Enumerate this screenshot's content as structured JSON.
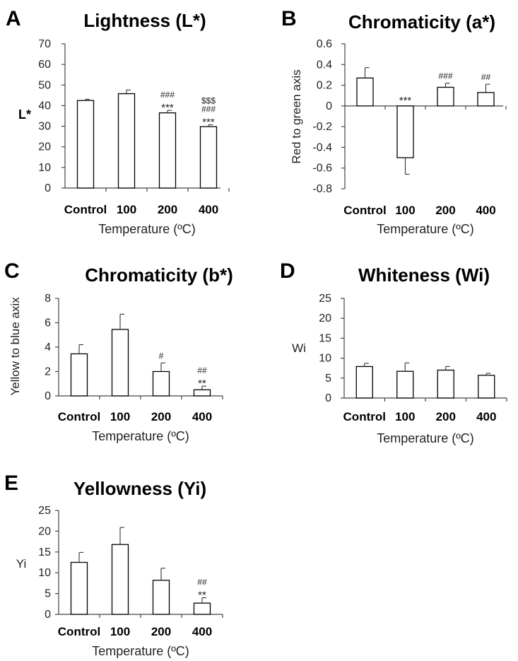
{
  "figure": {
    "x_axis_label": "Temperature (ºC)"
  },
  "chart_data": [
    {
      "panel": "A",
      "type": "bar",
      "title": "Lightness (L*)",
      "ylabel": "L*",
      "xlabel": "Temperature (ºC)",
      "categories": [
        "Control",
        "100",
        "200",
        "400"
      ],
      "values": [
        42.5,
        45.8,
        36.5,
        29.8
      ],
      "errors": [
        0.6,
        1.8,
        1.2,
        0.9
      ],
      "ylim": [
        0,
        70
      ],
      "yticks": [
        0,
        10,
        20,
        30,
        40,
        50,
        60,
        70
      ],
      "annotations": [
        [],
        [],
        [
          "***",
          "###"
        ],
        [
          "***",
          "###",
          "$$$"
        ]
      ]
    },
    {
      "panel": "B",
      "type": "bar",
      "title": "Chromaticity (a*)",
      "ylabel": "Red to green axis",
      "xlabel": "Temperature (ºC)",
      "categories": [
        "Control",
        "100",
        "200",
        "400"
      ],
      "values": [
        0.27,
        -0.5,
        0.18,
        0.13
      ],
      "errors": [
        0.1,
        0.16,
        0.04,
        0.08
      ],
      "ylim": [
        -0.8,
        0.6
      ],
      "yticks": [
        -0.8,
        -0.6,
        -0.4,
        -0.2,
        0,
        0.2,
        0.4,
        0.6
      ],
      "annotations": [
        [],
        [
          "***"
        ],
        [
          "###"
        ],
        [
          "##"
        ]
      ]
    },
    {
      "panel": "C",
      "type": "bar",
      "title": "Chromaticity (b*)",
      "ylabel": "Yellow to blue axix",
      "xlabel": "Temperature (ºC)",
      "categories": [
        "Control",
        "100",
        "200",
        "400"
      ],
      "values": [
        3.45,
        5.45,
        2.0,
        0.5
      ],
      "errors": [
        0.75,
        1.25,
        0.7,
        0.3
      ],
      "ylim": [
        0,
        8
      ],
      "yticks": [
        0,
        2,
        4,
        6,
        8
      ],
      "annotations": [
        [],
        [],
        [
          "#"
        ],
        [
          "**",
          "##"
        ]
      ]
    },
    {
      "panel": "D",
      "type": "bar",
      "title": "Whiteness (Wi)",
      "ylabel": "Wi",
      "xlabel": "Temperature (ºC)",
      "categories": [
        "Control",
        "100",
        "200",
        "400"
      ],
      "values": [
        7.9,
        6.7,
        7.0,
        5.7
      ],
      "errors": [
        0.8,
        2.1,
        0.9,
        0.5
      ],
      "ylim": [
        0,
        25
      ],
      "yticks": [
        0,
        5,
        10,
        15,
        20,
        25
      ],
      "annotations": [
        [],
        [],
        [],
        []
      ]
    },
    {
      "panel": "E",
      "type": "bar",
      "title": "Yellowness (Yi)",
      "ylabel": "Yi",
      "xlabel": "Temperature (ºC)",
      "categories": [
        "Control",
        "100",
        "200",
        "400"
      ],
      "values": [
        12.5,
        16.8,
        8.2,
        2.7
      ],
      "errors": [
        2.4,
        4.1,
        2.9,
        1.3
      ],
      "ylim": [
        0,
        25
      ],
      "yticks": [
        0,
        5,
        10,
        15,
        20,
        25
      ],
      "annotations": [
        [],
        [],
        [],
        [
          "**",
          "##"
        ]
      ]
    }
  ]
}
